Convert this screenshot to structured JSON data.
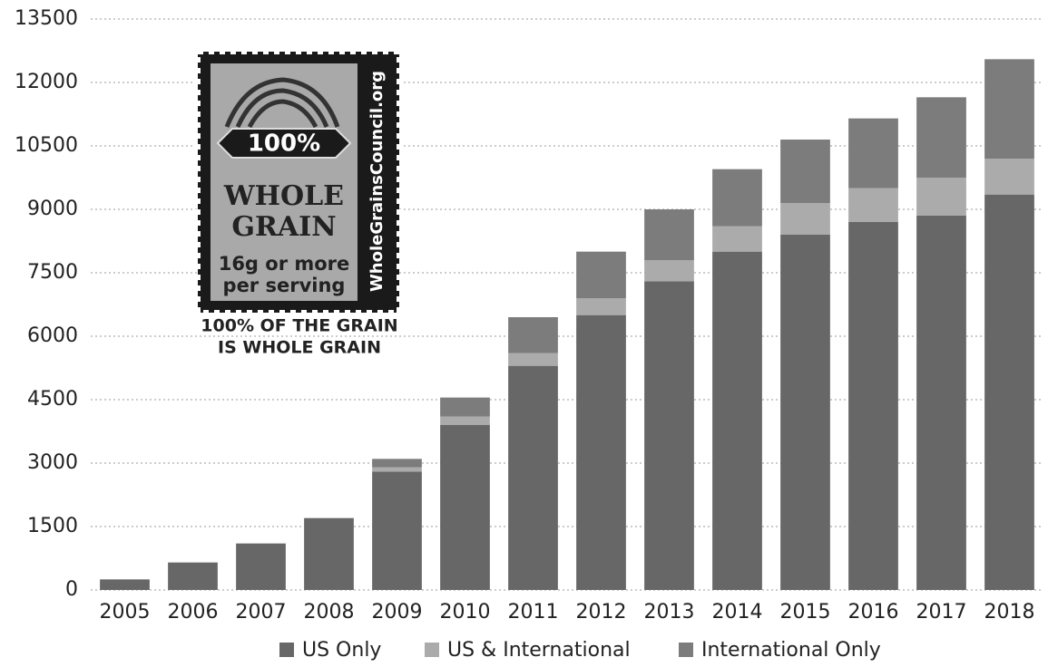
{
  "chart_data": {
    "type": "stacked_bar",
    "categories": [
      "2005",
      "2006",
      "2007",
      "2008",
      "2009",
      "2010",
      "2011",
      "2012",
      "2013",
      "2014",
      "2015",
      "2016",
      "2017",
      "2018"
    ],
    "series": [
      {
        "name": "US Only",
        "color": "#676767",
        "values": [
          250,
          650,
          1100,
          1700,
          2800,
          3900,
          5300,
          6500,
          7300,
          8000,
          8400,
          8700,
          8850,
          9350
        ]
      },
      {
        "name": "US & International",
        "color": "#ababab",
        "values": [
          0,
          0,
          0,
          0,
          100,
          200,
          300,
          400,
          500,
          600,
          750,
          800,
          900,
          850
        ]
      },
      {
        "name": "International Only",
        "color": "#7c7c7c",
        "values": [
          0,
          0,
          0,
          0,
          200,
          450,
          850,
          1100,
          1200,
          1350,
          1500,
          1650,
          1900,
          2350
        ]
      }
    ],
    "ylim": [
      0,
      13500
    ],
    "yticks": [
      0,
      1500,
      3000,
      4500,
      6000,
      7500,
      9000,
      10500,
      12000,
      13500
    ],
    "grid": true,
    "legend": "bottom",
    "stamp": {
      "badge": "100%",
      "line1": "WHOLE",
      "line2": "GRAIN",
      "line3": "16g or more",
      "line4": "per serving",
      "side": "WholeGrainsCouncil.org",
      "caption1": "100% OF THE GRAIN",
      "caption2": "IS WHOLE GRAIN"
    }
  }
}
